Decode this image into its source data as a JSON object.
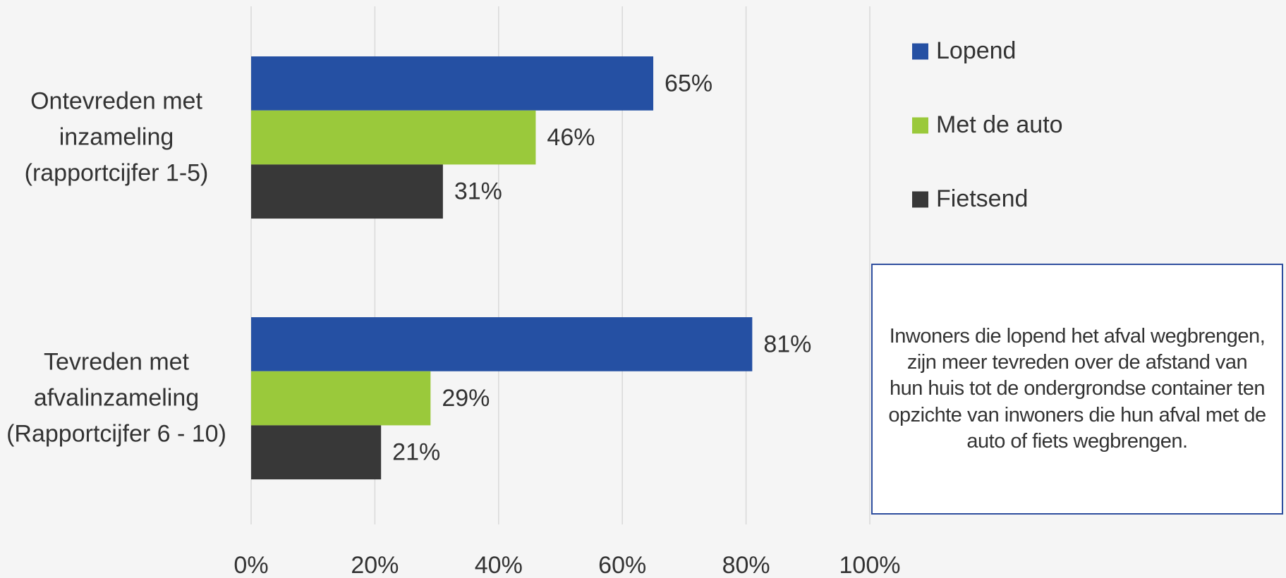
{
  "chart_data": {
    "type": "hbar",
    "categories": [
      "Ontevreden met inzameling (rapportcijfer 1-5)",
      "Tevreden met afvalinzameling (Rapportcijfer 6 - 10)"
    ],
    "series": [
      {
        "name": "Lopend",
        "color": "#2550a3",
        "values": [
          65,
          81
        ],
        "value_labels": [
          "65%",
          "81%"
        ]
      },
      {
        "name": "Met de auto",
        "color": "#9ac93b",
        "values": [
          46,
          29
        ],
        "value_labels": [
          "46%",
          "29%"
        ]
      },
      {
        "name": "Fietsend",
        "color": "#383838",
        "values": [
          31,
          21
        ],
        "value_labels": [
          "31%",
          "21%"
        ]
      }
    ],
    "xlim": [
      0,
      100
    ],
    "xticks": [
      {
        "value": 0,
        "label": "0%"
      },
      {
        "value": 20,
        "label": "20%"
      },
      {
        "value": 40,
        "label": "40%"
      },
      {
        "value": 60,
        "label": "60%"
      },
      {
        "value": 80,
        "label": "80%"
      },
      {
        "value": 100,
        "label": "100%"
      }
    ],
    "grid": true,
    "legend": "right",
    "annotation": "Inwoners die lopend het afval wegbrengen, zijn meer tevreden over de afstand van hun huis tot de ondergrondse container ten opzichte van inwoners die hun afval met de auto of fiets wegbrengen."
  }
}
